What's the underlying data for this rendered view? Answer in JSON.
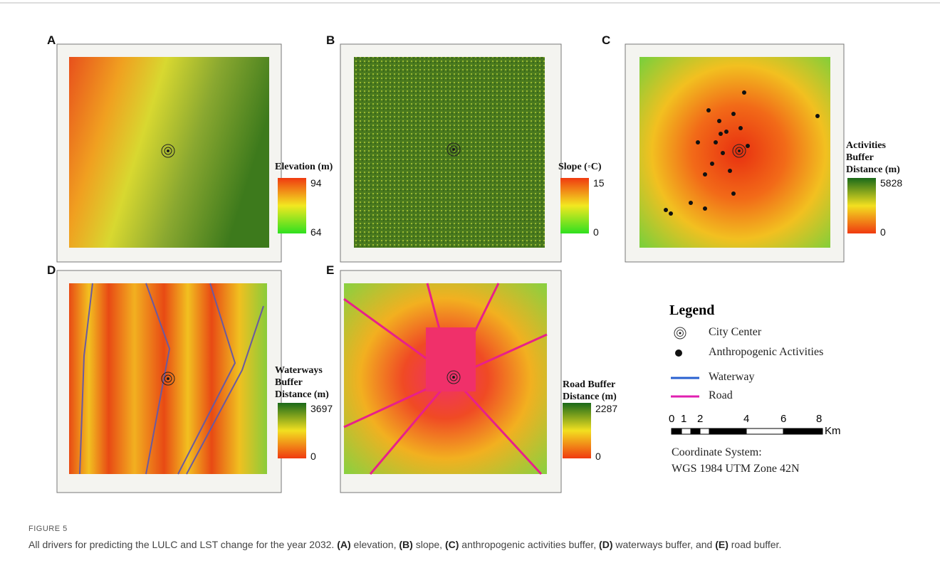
{
  "figure": {
    "panels": [
      {
        "letter": "A",
        "legend_title": [
          "Elevation (m)"
        ],
        "max": 94,
        "min": 64
      },
      {
        "letter": "B",
        "legend_title": [
          "Slope (◦C)"
        ],
        "max": 15,
        "min": 0
      },
      {
        "letter": "C",
        "legend_title": [
          "Activities",
          "Buffer",
          "Distance (m)"
        ],
        "max": 5828,
        "min": 0
      },
      {
        "letter": "D",
        "legend_title": [
          "Waterways",
          "Buffer",
          "Distance (m)"
        ],
        "max": 3697,
        "min": 0
      },
      {
        "letter": "E",
        "legend_title": [
          "Road Buffer",
          "Distance (m)"
        ],
        "max": 2287,
        "min": 0
      }
    ],
    "legend": {
      "title": "Legend",
      "items": [
        "City Center",
        "Anthropogenic Activities",
        "Waterway",
        "Road"
      ]
    },
    "scale_bar": {
      "ticks": [
        "0",
        "1",
        "2",
        "4",
        "6",
        "8"
      ],
      "unit": "Km"
    },
    "coordinate_system": [
      "Coordinate System:",
      "WGS 1984 UTM Zone 42N"
    ],
    "label": "FIGURE 5",
    "caption": [
      {
        "text": "All drivers for predicting the LULC and LST change for the year 2032. ",
        "bold": false
      },
      {
        "text": "(A)",
        "bold": true
      },
      {
        "text": " elevation, ",
        "bold": false
      },
      {
        "text": "(B)",
        "bold": true
      },
      {
        "text": " slope, ",
        "bold": false
      },
      {
        "text": "(C)",
        "bold": true
      },
      {
        "text": " anthropogenic activities buffer, ",
        "bold": false
      },
      {
        "text": "(D)",
        "bold": true
      },
      {
        "text": " waterways buffer, and ",
        "bold": false
      },
      {
        "text": "(E)",
        "bold": true
      },
      {
        "text": " road buffer.",
        "bold": false
      }
    ]
  }
}
